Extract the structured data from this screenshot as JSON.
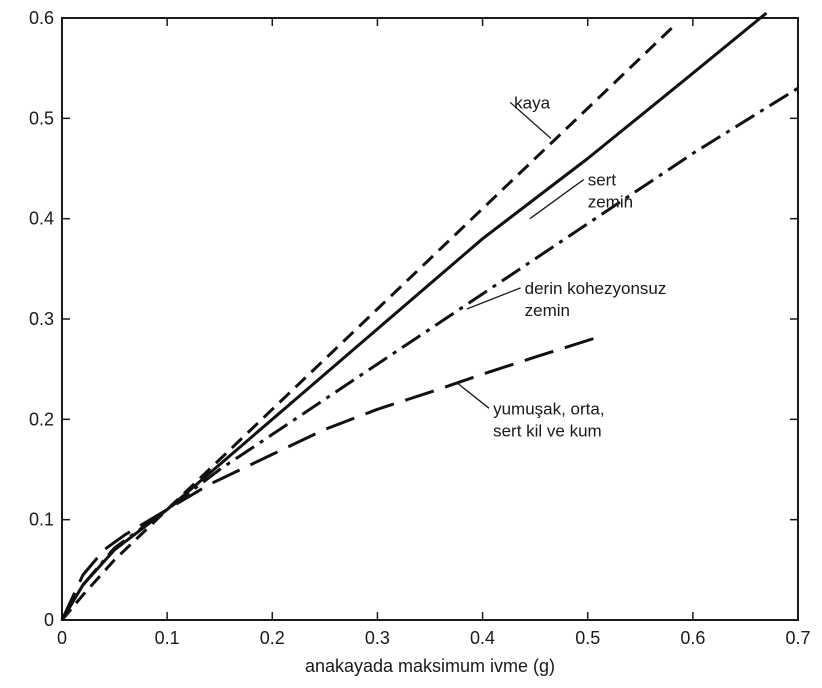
{
  "chart_data": {
    "type": "line",
    "title": "",
    "xlabel": "anakayada maksimum ivme (g)",
    "ylabel": "",
    "xlim": [
      0,
      0.7
    ],
    "ylim": [
      0,
      0.6
    ],
    "grid": false,
    "x_ticks": [
      0,
      0.1,
      0.2,
      0.3,
      0.4,
      0.5,
      0.6,
      0.7
    ],
    "x_tick_labels": [
      "0",
      "0.1",
      "0.2",
      "0.3",
      "0.4",
      "0.5",
      "0.6",
      "0.7"
    ],
    "y_ticks": [
      0,
      0.1,
      0.2,
      0.3,
      0.4,
      0.5,
      0.6
    ],
    "y_tick_labels": [
      "0",
      "0.1",
      "0.2",
      "0.3",
      "0.4",
      "0.5",
      "0.6"
    ],
    "series": [
      {
        "name": "kaya",
        "style": "dashed",
        "x": [
          0,
          0.02,
          0.05,
          0.1,
          0.15,
          0.2,
          0.3,
          0.4,
          0.5,
          0.58
        ],
        "y": [
          0,
          0.025,
          0.06,
          0.11,
          0.16,
          0.21,
          0.31,
          0.41,
          0.51,
          0.59
        ]
      },
      {
        "name": "sert zemin",
        "style": "solid",
        "x": [
          0,
          0.02,
          0.05,
          0.1,
          0.15,
          0.2,
          0.3,
          0.4,
          0.5,
          0.6,
          0.67
        ],
        "y": [
          0,
          0.035,
          0.07,
          0.11,
          0.155,
          0.2,
          0.29,
          0.38,
          0.46,
          0.545,
          0.605
        ]
      },
      {
        "name": "derin kohezyonsuz zemin",
        "style": "dashdot",
        "x": [
          0,
          0.02,
          0.05,
          0.1,
          0.15,
          0.2,
          0.3,
          0.4,
          0.5,
          0.6,
          0.7
        ],
        "y": [
          0,
          0.035,
          0.072,
          0.11,
          0.15,
          0.185,
          0.255,
          0.325,
          0.395,
          0.465,
          0.53
        ]
      },
      {
        "name": "yumuşak, orta, sert kil ve kum",
        "style": "longdash",
        "x": [
          0,
          0.02,
          0.04,
          0.06,
          0.1,
          0.14,
          0.17,
          0.2,
          0.25,
          0.3,
          0.35,
          0.4,
          0.45,
          0.51
        ],
        "y": [
          0,
          0.045,
          0.07,
          0.085,
          0.11,
          0.135,
          0.15,
          0.165,
          0.19,
          0.21,
          0.227,
          0.245,
          0.262,
          0.282
        ]
      }
    ],
    "annotations": [
      {
        "lines": [
          "kaya"
        ],
        "series": "kaya",
        "at_x": 0.465,
        "at_y": 0.48,
        "text_x": 0.43,
        "text_y": 0.51
      },
      {
        "lines": [
          "sert",
          "zemin"
        ],
        "series": "sert zemin",
        "at_x": 0.445,
        "at_y": 0.4,
        "text_x": 0.5,
        "text_y": 0.433
      },
      {
        "lines": [
          "derin kohezyonsuz",
          "zemin"
        ],
        "series": "derin kohezyonsuz zemin",
        "at_x": 0.385,
        "at_y": 0.31,
        "text_x": 0.44,
        "text_y": 0.325
      },
      {
        "lines": [
          "yumuşak, orta,",
          "sert kil ve kum"
        ],
        "series": "yumuşak, orta, sert kil ve kum",
        "at_x": 0.375,
        "at_y": 0.237,
        "text_x": 0.41,
        "text_y": 0.205
      }
    ]
  }
}
